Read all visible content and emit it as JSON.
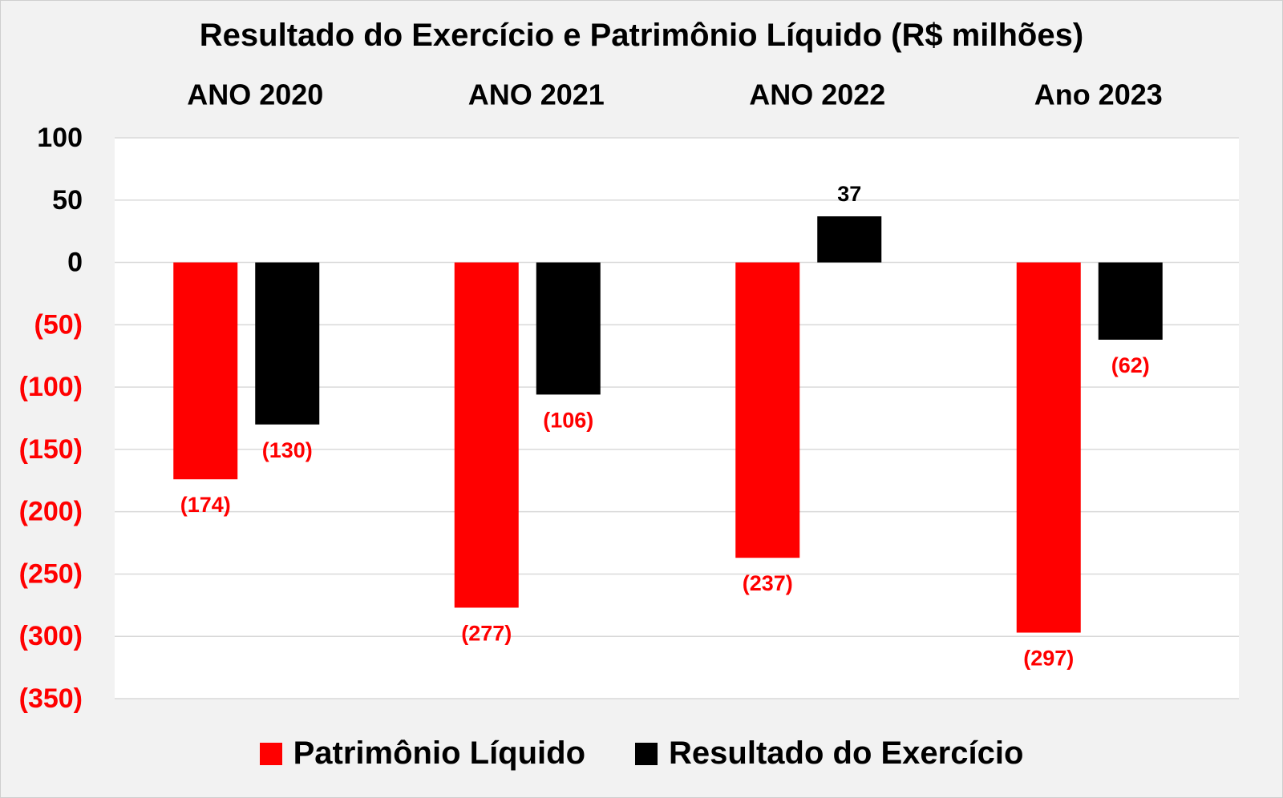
{
  "chart_data": {
    "type": "bar",
    "title": "Resultado do Exercício e Patrimônio Líquido (R$ milhões)",
    "categories": [
      "ANO 2020",
      "ANO 2021",
      "ANO 2022",
      "Ano 2023"
    ],
    "series": [
      {
        "name": "Patrimônio Líquido",
        "color": "#ff0000",
        "values": [
          -174,
          -277,
          -237,
          -297
        ],
        "labels": [
          "(174)",
          "(277)",
          "(237)",
          "(297)"
        ]
      },
      {
        "name": "Resultado do Exercício",
        "color": "#000000",
        "values": [
          -130,
          -106,
          37,
          -62
        ],
        "labels": [
          "(130)",
          "(106)",
          "37",
          "(62)"
        ]
      }
    ],
    "ylim": [
      -350,
      100
    ],
    "yticks": [
      {
        "value": 100,
        "label": "100"
      },
      {
        "value": 50,
        "label": "50"
      },
      {
        "value": 0,
        "label": "0"
      },
      {
        "value": -50,
        "label": "(50)"
      },
      {
        "value": -100,
        "label": "(100)"
      },
      {
        "value": -150,
        "label": "(150)"
      },
      {
        "value": -200,
        "label": "(200)"
      },
      {
        "value": -250,
        "label": "(250)"
      },
      {
        "value": -300,
        "label": "(300)"
      },
      {
        "value": -350,
        "label": "(350)"
      }
    ],
    "negative_color": "#ff0000",
    "positive_color": "#000000",
    "grid": true,
    "legend_position": "bottom"
  }
}
